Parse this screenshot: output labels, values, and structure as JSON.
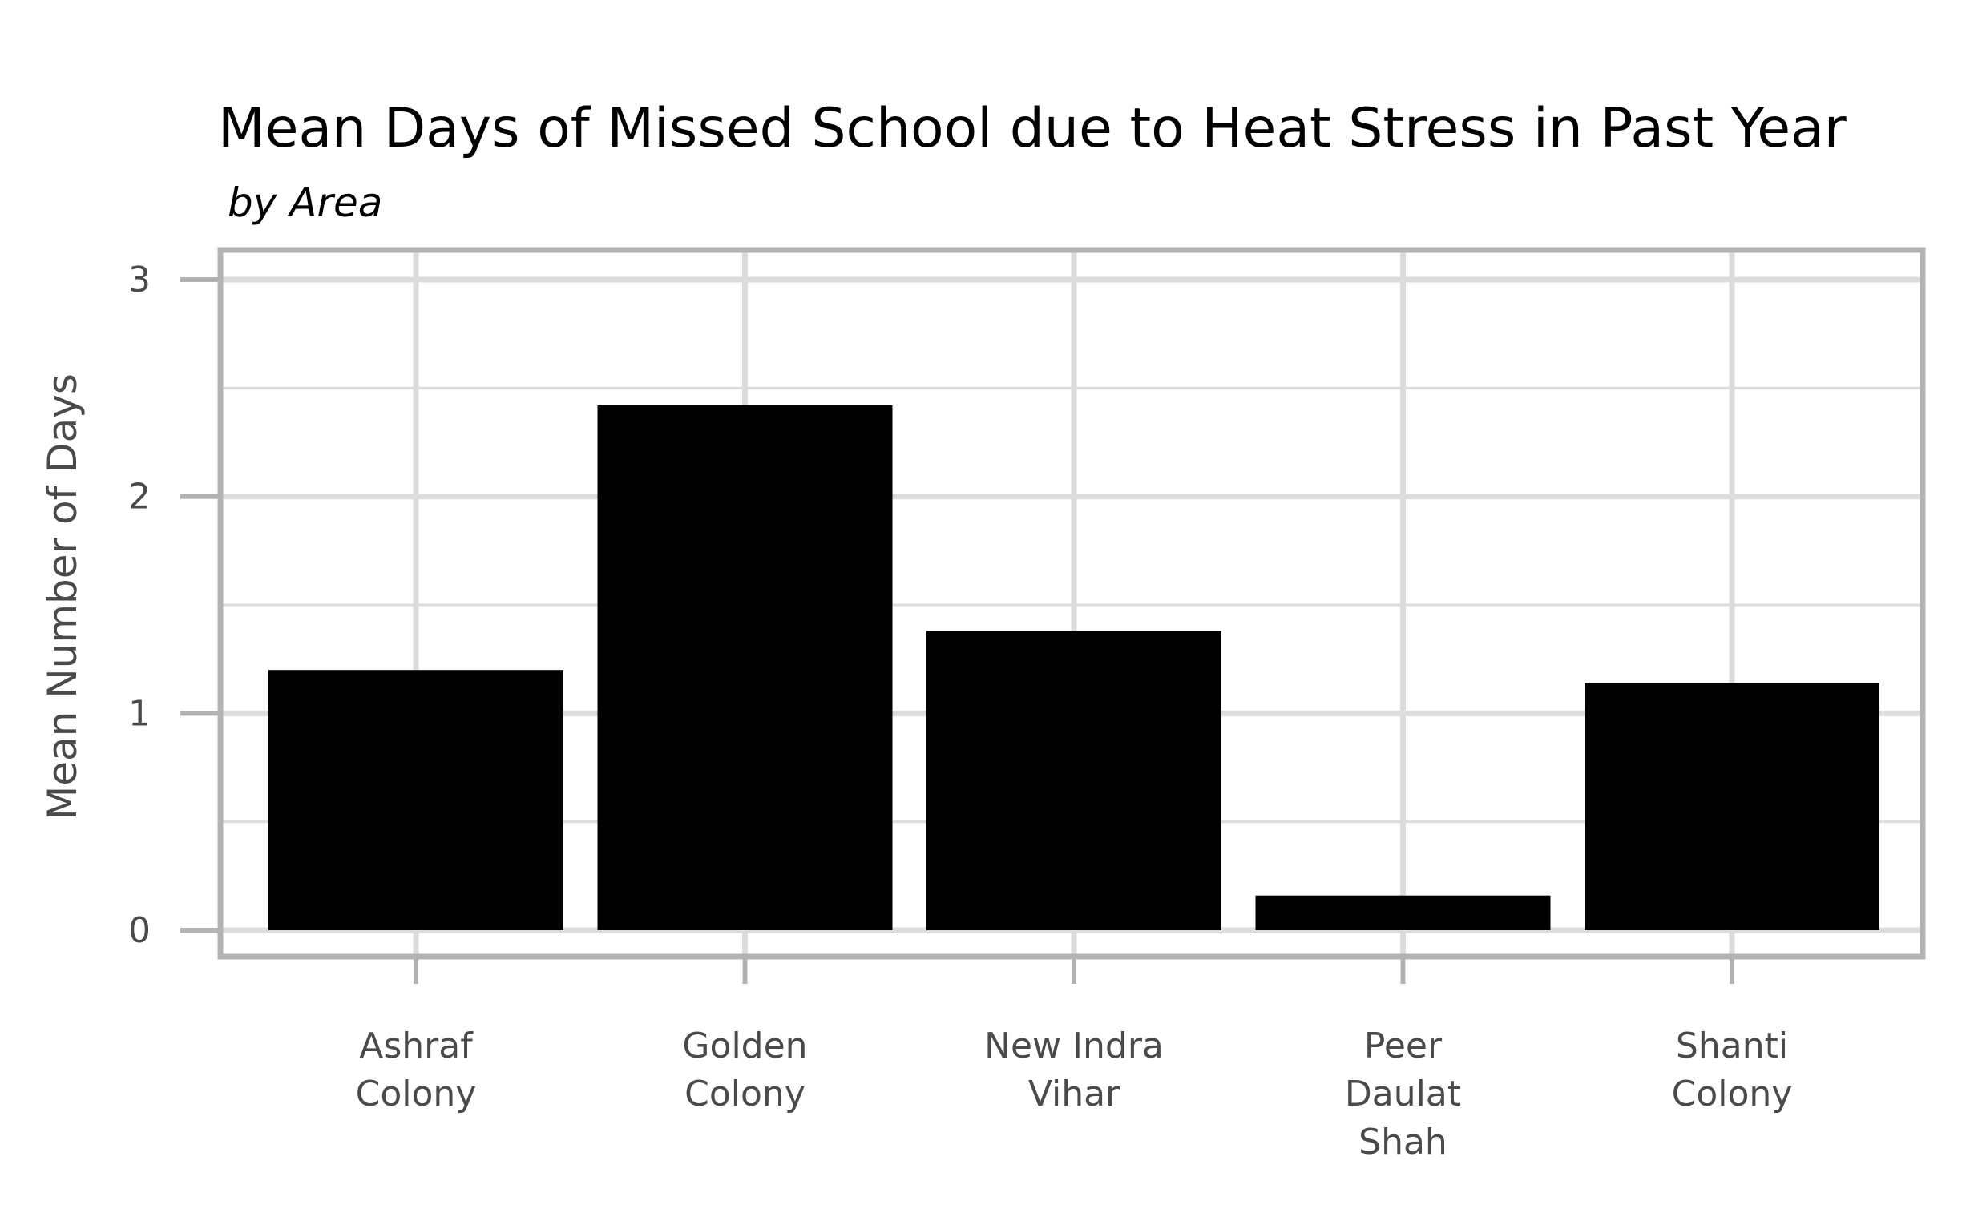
{
  "chart_data": {
    "type": "bar",
    "title": "Mean Days of Missed School due to Heat Stress in Past Year",
    "subtitle": "by Area",
    "xlabel": "",
    "ylabel": "Mean Number of Days",
    "categories": [
      [
        "Ashraf",
        "Colony"
      ],
      [
        "Golden",
        "Colony"
      ],
      [
        "New Indra",
        "Vihar"
      ],
      [
        "Peer",
        "Daulat",
        "Shah"
      ],
      [
        "Shanti",
        "Colony"
      ]
    ],
    "values": [
      1.2,
      2.42,
      1.38,
      0.16,
      1.14
    ],
    "ylim": [
      0,
      3
    ],
    "yticks": [
      0,
      1,
      2,
      3
    ],
    "grid": true,
    "legend": "none",
    "colors": {
      "bar": "#000000",
      "grid": "#dcdcdc",
      "frame": "#b3b3b3",
      "text": "#4a4a4a",
      "title": "#000000"
    }
  }
}
